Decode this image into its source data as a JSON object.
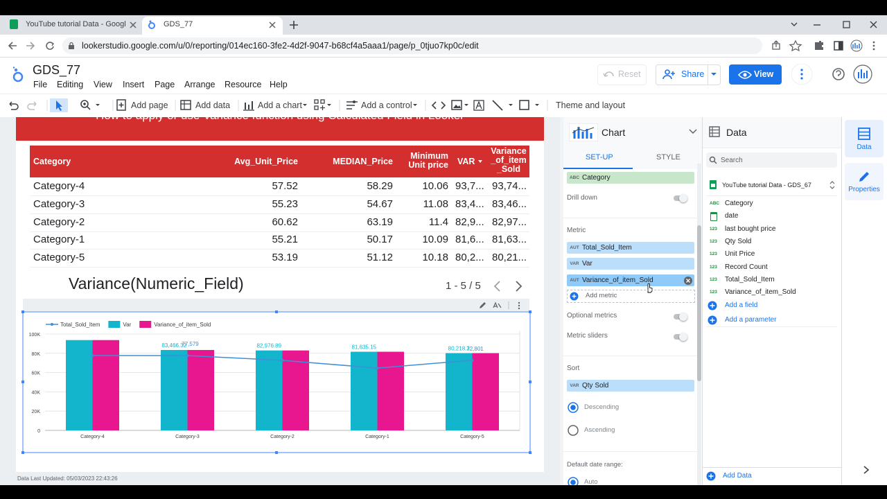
{
  "browser": {
    "tabs": [
      "YouTube tutorial Data - Google S",
      "GDS_77"
    ],
    "url": "lookerstudio.google.com/u/0/reporting/014ec160-3fe2-4d2f-9047-b68cf4a5aaa1/page/p_0tjuo7kp0c/edit"
  },
  "header": {
    "title": "GDS_77",
    "menu": [
      "File",
      "Editing",
      "View",
      "Insert",
      "Page",
      "Arrange",
      "Resource",
      "Help"
    ],
    "reset": "Reset",
    "share": "Share",
    "view": "View"
  },
  "toolbar": [
    "Add page",
    "Add data",
    "Add a chart",
    "Add a control",
    "Theme and layout"
  ],
  "canvas": {
    "banner": "How to apply or use Variance function using Calculated Field in Looker",
    "table": {
      "columns": [
        "Category",
        "Avg_Unit_Price",
        "MEDIAN_Price",
        "Minimum Unit price",
        "VAR",
        "Variance_of_item_Sold"
      ],
      "rows": [
        [
          "Category-4",
          57.52,
          58.29,
          10.06,
          "93,7...",
          "93,74..."
        ],
        [
          "Category-3",
          55.23,
          54.67,
          11.08,
          "83,4...",
          "83,46..."
        ],
        [
          "Category-2",
          60.62,
          63.19,
          11.4,
          "82,9...",
          "82,97..."
        ],
        [
          "Category-1",
          55.21,
          50.17,
          10.09,
          "81,6...",
          "81,63..."
        ],
        [
          "Category-5",
          53.19,
          51.12,
          10.18,
          "80,2...",
          "80,21..."
        ]
      ]
    },
    "heading": "Variance(Numeric_Field)",
    "pagination": "1 - 5 / 5",
    "footer": "Data Last Updated: 05/03/2023 22:43:26"
  },
  "chart_data": {
    "type": "combo",
    "categories": [
      "Category-4",
      "Category-3",
      "Category-2",
      "Category-1",
      "Category-5"
    ],
    "series": [
      {
        "name": "Total_Sold_Item",
        "type": "line",
        "color": "#3f8fd8",
        "values": [
          77700,
          77579,
          72700,
          64700,
          72801
        ],
        "value_labels": [
          null,
          "77,579",
          null,
          null,
          "72,801"
        ]
      },
      {
        "name": "Var",
        "type": "bar",
        "color": "#12b5cb",
        "values": [
          93740,
          83466.32,
          82976.89,
          81635.15,
          80218.3
        ],
        "value_labels": [
          null,
          "83,466.32",
          "82,976.89",
          "81,635.15",
          "80,218.3"
        ]
      },
      {
        "name": "Variance_of_item_Sold",
        "type": "bar",
        "color": "#e8168f",
        "values": [
          93740,
          83460,
          82970,
          81630,
          80210
        ]
      }
    ],
    "ylim": [
      0,
      100000
    ],
    "yticks": [
      0,
      {
        "value": 20000,
        "label": "20K"
      },
      {
        "value": 40000,
        "label": "40K"
      },
      {
        "value": 60000,
        "label": "60K"
      },
      {
        "value": 80000,
        "label": "80K"
      },
      {
        "value": 100000,
        "label": "100K"
      }
    ],
    "grid": true,
    "legend": "top"
  },
  "chart_panel": {
    "title": "Chart",
    "tabs": [
      "SET-UP",
      "STYLE"
    ],
    "dimension": {
      "badge": "ABC",
      "name": "Category"
    },
    "drill_down": "Drill down",
    "metric_label": "Metric",
    "metrics": [
      {
        "badge": "AUT",
        "name": "Total_Sold_Item"
      },
      {
        "badge": "VAR",
        "name": "Var"
      },
      {
        "badge": "AUT",
        "name": "Variance_of_item_Sold"
      }
    ],
    "add_metric": "Add metric",
    "optional_metrics": "Optional metrics",
    "metric_sliders": "Metric sliders",
    "sort_label": "Sort",
    "sort": {
      "badge": "VAR",
      "name": "Qty Sold"
    },
    "sort_options": [
      "Descending",
      "Ascending"
    ],
    "date_range_label": "Default date range:",
    "date_range": "Auto"
  },
  "data_panel": {
    "title": "Data",
    "search": "Search",
    "source": "YouTube tutorial Data - GDS_67",
    "fields": [
      {
        "badge": "ABC",
        "name": "Category"
      },
      {
        "name": "date"
      },
      {
        "badge": "123",
        "name": "last bought price"
      },
      {
        "badge": "123",
        "name": "Qty Sold"
      },
      {
        "badge": "123",
        "name": "Unit Price"
      },
      {
        "badge": "123",
        "name": "Record Count"
      },
      {
        "badge": "123",
        "name": "Total_Sold_Item"
      },
      {
        "badge": "123",
        "name": "Variance_of_item_Sold"
      }
    ],
    "add_field": "Add a field",
    "add_parameter": "Add a parameter",
    "add_data": "Add Data"
  },
  "side_tabs": [
    "Data",
    "Properties"
  ]
}
